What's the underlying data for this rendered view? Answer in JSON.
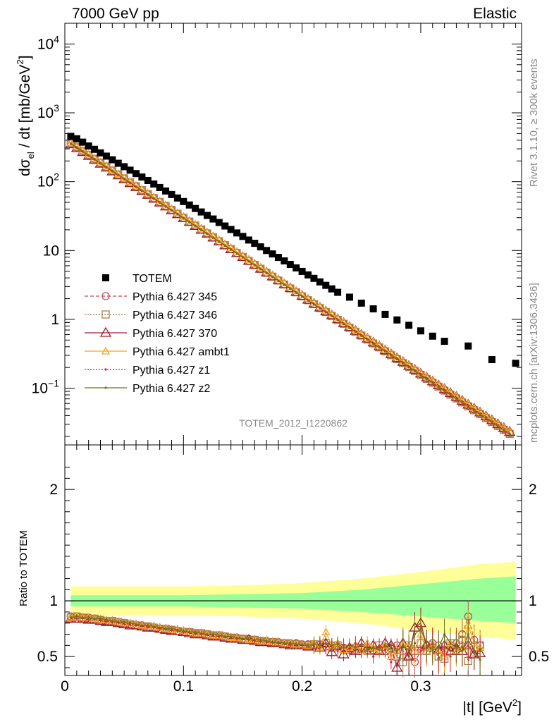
{
  "header": {
    "left_label": "7000 GeV pp",
    "right_label": "Elastic"
  },
  "side_labels": {
    "rivet": "Rivet 3.1.10, ≥ 300k events",
    "source": "mcplots.cern.ch [arXiv:1306.3436]"
  },
  "analysis_id": "TOTEM_2012_I1220862",
  "colors": {
    "TOTEM": "#000000",
    "345": "#c04a5a",
    "346": "#a8804a",
    "370": "#a01830",
    "ambt1": "#f0a820",
    "z1": "#e02020",
    "z2": "#707018",
    "band_inner": "#99ff99",
    "band_outer": "#ffff99"
  },
  "chart_data": [
    {
      "type": "scatter",
      "title": "",
      "ylabel": "dσel / dt [mb/GeV²]",
      "ylabel_parts": {
        "main": "dσ",
        "sub": "el",
        "rest": " / dt [mb/GeV",
        "sup": "2",
        "close": "]"
      },
      "yscale": "log",
      "ylim": [
        0.015,
        20000
      ],
      "xlim": [
        0,
        0.385
      ],
      "y_ticks": [
        {
          "value": 10000,
          "base": "10",
          "exp": "4"
        },
        {
          "value": 1000,
          "base": "10",
          "exp": "3"
        },
        {
          "value": 100,
          "base": "10",
          "exp": "2"
        },
        {
          "value": 10,
          "base": "10",
          "exp": ""
        },
        {
          "value": 1,
          "base": "1",
          "exp": ""
        },
        {
          "value": 0.1,
          "base": "10",
          "exp": "−1"
        }
      ],
      "grid": false,
      "legend_position": "left-center",
      "legend": [
        "TOTEM",
        "Pythia 6.427 345",
        "Pythia 6.427 346",
        "Pythia 6.427 370",
        "Pythia 6.427 ambt1",
        "Pythia 6.427 z1",
        "Pythia 6.427 z2"
      ],
      "x": [
        0.005,
        0.01,
        0.015,
        0.02,
        0.025,
        0.03,
        0.035,
        0.04,
        0.045,
        0.05,
        0.055,
        0.06,
        0.065,
        0.07,
        0.075,
        0.08,
        0.085,
        0.09,
        0.095,
        0.1,
        0.105,
        0.11,
        0.115,
        0.12,
        0.125,
        0.13,
        0.135,
        0.14,
        0.145,
        0.15,
        0.155,
        0.16,
        0.165,
        0.17,
        0.175,
        0.18,
        0.185,
        0.19,
        0.195,
        0.2,
        0.205,
        0.21,
        0.215,
        0.22,
        0.225,
        0.23,
        0.235,
        0.24,
        0.245,
        0.25,
        0.255,
        0.26,
        0.265,
        0.27,
        0.275,
        0.28,
        0.285,
        0.29,
        0.295,
        0.3,
        0.305,
        0.31,
        0.315,
        0.32,
        0.325,
        0.33,
        0.335,
        0.34,
        0.345,
        0.35,
        0.355,
        0.36,
        0.365,
        0.37,
        0.375
      ],
      "series": [
        {
          "name": "TOTEM",
          "key": "TOTEM",
          "x": [
            0.005,
            0.01,
            0.015,
            0.02,
            0.025,
            0.03,
            0.035,
            0.04,
            0.045,
            0.05,
            0.055,
            0.06,
            0.065,
            0.07,
            0.075,
            0.08,
            0.085,
            0.09,
            0.095,
            0.1,
            0.105,
            0.11,
            0.115,
            0.12,
            0.125,
            0.13,
            0.135,
            0.14,
            0.145,
            0.15,
            0.155,
            0.16,
            0.165,
            0.17,
            0.175,
            0.18,
            0.185,
            0.19,
            0.195,
            0.2,
            0.205,
            0.21,
            0.215,
            0.22,
            0.225,
            0.23,
            0.24,
            0.25,
            0.26,
            0.27,
            0.28,
            0.29,
            0.3,
            0.31,
            0.32,
            0.34,
            0.36,
            0.38
          ],
          "values": [
            455,
            420,
            375,
            330,
            295,
            262,
            235,
            208,
            185,
            165,
            147,
            131,
            117,
            104,
            92.5,
            82.3,
            73.2,
            65.1,
            57.9,
            51.5,
            45.8,
            40.8,
            36.3,
            32.3,
            28.7,
            25.5,
            22.7,
            20.2,
            18.0,
            16.0,
            14.2,
            12.7,
            11.3,
            10.0,
            8.92,
            7.94,
            7.06,
            6.28,
            5.59,
            4.97,
            4.42,
            3.94,
            3.5,
            3.12,
            2.77,
            2.47,
            2.1,
            1.72,
            1.42,
            1.18,
            0.98,
            0.82,
            0.68,
            0.57,
            0.48,
            0.41,
            0.26,
            0.23
          ]
        },
        {
          "name": "Pythia 6.427 345",
          "key": "345",
          "start": 360,
          "slope": -26.2
        },
        {
          "name": "Pythia 6.427 346",
          "key": "346",
          "start": 365,
          "slope": -26.3
        },
        {
          "name": "Pythia 6.427 370",
          "key": "370",
          "start": 350,
          "slope": -26.0
        },
        {
          "name": "Pythia 6.427 ambt1",
          "key": "ambt1",
          "start": 370,
          "slope": -26.1
        },
        {
          "name": "Pythia 6.427 z1",
          "key": "z1",
          "start": 355,
          "slope": -26.2
        },
        {
          "name": "Pythia 6.427 z2",
          "key": "z2",
          "start": 362,
          "slope": -26.3
        }
      ]
    },
    {
      "type": "line",
      "ylabel": "Ratio to TOTEM",
      "xlabel": "|t| [GeV²]",
      "xlabel_parts": {
        "main": "|t| [GeV",
        "sup": "2",
        "close": "]"
      },
      "ylim": [
        0.33,
        2.4
      ],
      "xlim": [
        0,
        0.385
      ],
      "y_ticks": [
        {
          "value": 2,
          "label": "2"
        },
        {
          "value": 1,
          "label": "1"
        },
        {
          "value": 0.5,
          "label": "0.5"
        }
      ],
      "x_ticks": [
        {
          "value": 0,
          "label": "0"
        },
        {
          "value": 0.1,
          "label": "0.1"
        },
        {
          "value": 0.2,
          "label": "0.2"
        },
        {
          "value": 0.3,
          "label": "0.3"
        }
      ],
      "band": {
        "x": [
          0.005,
          0.05,
          0.1,
          0.15,
          0.2,
          0.25,
          0.3,
          0.35,
          0.38
        ],
        "inner_hi": [
          1.05,
          1.05,
          1.05,
          1.06,
          1.07,
          1.1,
          1.15,
          1.2,
          1.22
        ],
        "inner_lo": [
          0.95,
          0.95,
          0.95,
          0.94,
          0.93,
          0.9,
          0.86,
          0.82,
          0.8
        ],
        "outer_hi": [
          1.13,
          1.13,
          1.13,
          1.14,
          1.16,
          1.2,
          1.26,
          1.33,
          1.35
        ],
        "outer_lo": [
          0.87,
          0.87,
          0.87,
          0.86,
          0.84,
          0.8,
          0.73,
          0.68,
          0.65
        ]
      },
      "series_ratios": {
        "345": [
          0.86,
          0.86,
          0.85,
          0.85,
          0.84,
          0.83,
          0.82,
          0.81,
          0.8,
          0.8,
          0.79,
          0.78,
          0.78,
          0.77,
          0.76,
          0.75,
          0.74,
          0.74,
          0.73,
          0.72,
          0.72,
          0.71,
          0.7,
          0.7,
          0.69,
          0.68,
          0.68,
          0.67,
          0.67,
          0.66,
          0.66,
          0.65,
          0.64,
          0.64,
          0.63,
          0.63,
          0.62,
          0.62,
          0.62,
          0.61,
          0.61,
          0.6,
          0.61,
          0.59,
          0.6,
          0.59,
          0.58,
          0.57,
          0.56,
          0.57,
          0.56,
          0.55,
          0.56,
          0.55,
          0.57,
          0.6,
          0.55,
          0.5,
          0.45,
          0.55,
          0.6,
          0.62,
          0.6,
          0.55,
          0.58,
          0.62,
          0.7,
          0.86,
          0.65,
          0.6
        ],
        "346": [
          0.85,
          0.86,
          0.85,
          0.84,
          0.84,
          0.83,
          0.82,
          0.82,
          0.81,
          0.8,
          0.79,
          0.78,
          0.77,
          0.77,
          0.76,
          0.75,
          0.75,
          0.74,
          0.73,
          0.72,
          0.72,
          0.71,
          0.71,
          0.7,
          0.69,
          0.69,
          0.68,
          0.67,
          0.66,
          0.66,
          0.65,
          0.65,
          0.64,
          0.63,
          0.63,
          0.62,
          0.62,
          0.61,
          0.61,
          0.6,
          0.6,
          0.61,
          0.6,
          0.62,
          0.58,
          0.6,
          0.57,
          0.56,
          0.58,
          0.57,
          0.55,
          0.56,
          0.6,
          0.55,
          0.58,
          0.5,
          0.45,
          0.6,
          0.55,
          0.62,
          0.55,
          0.6,
          0.5,
          0.48,
          0.62,
          0.55,
          0.65,
          0.46,
          0.52,
          0.6
        ],
        "370": [
          0.84,
          0.84,
          0.84,
          0.83,
          0.83,
          0.82,
          0.81,
          0.81,
          0.8,
          0.79,
          0.78,
          0.78,
          0.77,
          0.76,
          0.76,
          0.75,
          0.74,
          0.73,
          0.73,
          0.72,
          0.71,
          0.7,
          0.7,
          0.69,
          0.68,
          0.68,
          0.67,
          0.66,
          0.66,
          0.65,
          0.65,
          0.64,
          0.63,
          0.63,
          0.62,
          0.62,
          0.61,
          0.6,
          0.6,
          0.6,
          0.59,
          0.6,
          0.58,
          0.62,
          0.54,
          0.6,
          0.52,
          0.58,
          0.55,
          0.62,
          0.58,
          0.6,
          0.55,
          0.62,
          0.6,
          0.4,
          0.62,
          0.5,
          0.76,
          0.8,
          0.6,
          0.58,
          0.56,
          0.6,
          0.55,
          0.58,
          0.55,
          0.6,
          0.52,
          0.53
        ],
        "ambt1": [
          0.85,
          0.86,
          0.85,
          0.85,
          0.84,
          0.83,
          0.83,
          0.82,
          0.81,
          0.8,
          0.8,
          0.79,
          0.78,
          0.77,
          0.77,
          0.76,
          0.75,
          0.74,
          0.74,
          0.73,
          0.72,
          0.71,
          0.71,
          0.7,
          0.69,
          0.69,
          0.68,
          0.67,
          0.67,
          0.66,
          0.65,
          0.65,
          0.64,
          0.64,
          0.63,
          0.63,
          0.62,
          0.62,
          0.61,
          0.61,
          0.6,
          0.62,
          0.58,
          0.72,
          0.6,
          0.62,
          0.56,
          0.58,
          0.6,
          0.55,
          0.62,
          0.58,
          0.55,
          0.6,
          0.5,
          0.55,
          0.62,
          0.6,
          0.55,
          0.7,
          0.55,
          0.6,
          0.55,
          0.5,
          0.62,
          0.55,
          0.58,
          0.78,
          0.62,
          0.58
        ],
        "z1": [
          0.85,
          0.85,
          0.85,
          0.84,
          0.84,
          0.83,
          0.82,
          0.81,
          0.81,
          0.8,
          0.79,
          0.78,
          0.78,
          0.77,
          0.76,
          0.75,
          0.75,
          0.74,
          0.73,
          0.72,
          0.72,
          0.71,
          0.7,
          0.7,
          0.69,
          0.68,
          0.68,
          0.67,
          0.66,
          0.66,
          0.65,
          0.64,
          0.64,
          0.63,
          0.63,
          0.62,
          0.62,
          0.61,
          0.61,
          0.6,
          0.6,
          0.59,
          0.62,
          0.58,
          0.6,
          0.55,
          0.6,
          0.57,
          0.62,
          0.55,
          0.58,
          0.5,
          0.6,
          0.56,
          0.45,
          0.55,
          0.6,
          0.5,
          0.62,
          0.55,
          0.58,
          0.62,
          0.48,
          0.55,
          0.5,
          0.6,
          0.55,
          0.6,
          0.55,
          0.55
        ],
        "z2": [
          0.85,
          0.86,
          0.85,
          0.85,
          0.84,
          0.84,
          0.83,
          0.82,
          0.81,
          0.81,
          0.8,
          0.79,
          0.78,
          0.78,
          0.77,
          0.76,
          0.75,
          0.75,
          0.74,
          0.73,
          0.72,
          0.72,
          0.71,
          0.7,
          0.7,
          0.69,
          0.68,
          0.68,
          0.67,
          0.66,
          0.66,
          0.65,
          0.65,
          0.64,
          0.63,
          0.63,
          0.62,
          0.62,
          0.61,
          0.61,
          0.6,
          0.61,
          0.6,
          0.62,
          0.6,
          0.61,
          0.58,
          0.6,
          0.58,
          0.6,
          0.57,
          0.58,
          0.56,
          0.6,
          0.58,
          0.55,
          0.6,
          0.55,
          0.7,
          0.75,
          0.6,
          0.56,
          0.58,
          0.7,
          0.62,
          0.58,
          0.55,
          0.7,
          0.55,
          0.47
        ]
      }
    }
  ]
}
